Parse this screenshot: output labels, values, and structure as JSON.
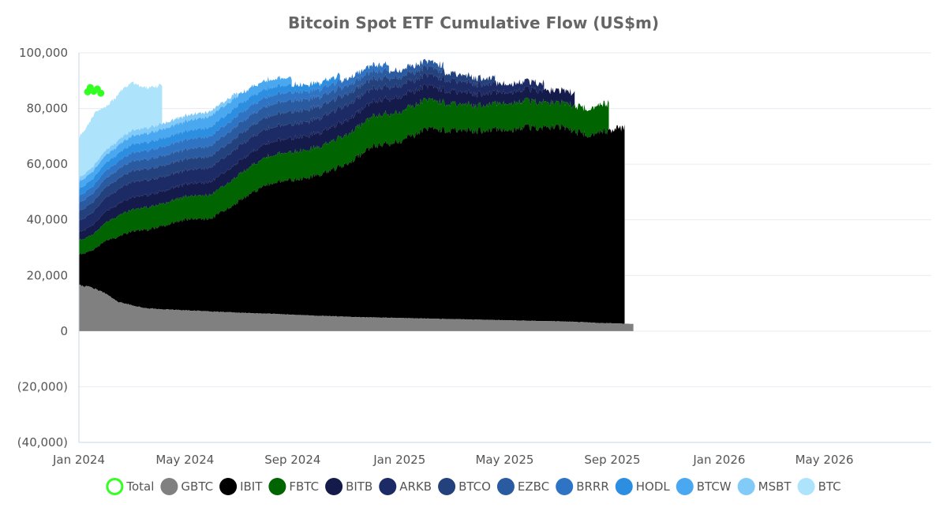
{
  "chart_data": {
    "type": "area",
    "title": "Bitcoin Spot ETF Cumulative Flow (US$m)",
    "subtitle": "",
    "xlabel": "",
    "ylabel": "",
    "stacked": true,
    "grid": true,
    "legend_position": "bottom",
    "xlim": [
      "2024-01-01",
      "2026-08-31"
    ],
    "ylim": [
      -40000,
      100000
    ],
    "y_ticks": [
      {
        "value": 100000,
        "label": "100,000"
      },
      {
        "value": 80000,
        "label": "80,000"
      },
      {
        "value": 60000,
        "label": "60,000"
      },
      {
        "value": 40000,
        "label": "40,000"
      },
      {
        "value": 20000,
        "label": "20,000"
      },
      {
        "value": 0,
        "label": "0"
      },
      {
        "value": -20000,
        "label": "(20,000)"
      },
      {
        "value": -40000,
        "label": "(40,000)"
      }
    ],
    "x_ticks": [
      {
        "value": "2024-01-01",
        "label": "Jan 2024"
      },
      {
        "value": "2024-05-01",
        "label": "May 2024"
      },
      {
        "value": "2024-09-01",
        "label": "Sep 2024"
      },
      {
        "value": "2025-01-01",
        "label": "Jan 2025"
      },
      {
        "value": "2025-05-01",
        "label": "May 2025"
      },
      {
        "value": "2025-09-01",
        "label": "Sep 2025"
      },
      {
        "value": "2026-01-01",
        "label": "Jan 2026"
      },
      {
        "value": "2026-05-01",
        "label": "May 2026"
      }
    ],
    "total": {
      "name": "Total",
      "color": "#33ff22",
      "points": [
        [
          "2024-01-11",
          86000
        ],
        [
          "2024-01-14",
          87500
        ],
        [
          "2024-01-18",
          86200
        ],
        [
          "2024-01-22",
          87000
        ],
        [
          "2024-01-26",
          85500
        ]
      ]
    },
    "series": [
      {
        "name": "GBTC",
        "color": "#808080",
        "end": "2025-09-25",
        "points": [
          [
            "2024-01-01",
            16500
          ],
          [
            "2024-01-15",
            15800
          ],
          [
            "2024-02-01",
            13500
          ],
          [
            "2024-02-15",
            10500
          ],
          [
            "2024-03-01",
            9300
          ],
          [
            "2024-03-15",
            8300
          ],
          [
            "2024-04-01",
            7900
          ],
          [
            "2024-05-01",
            7500
          ],
          [
            "2024-06-01",
            7000
          ],
          [
            "2024-07-01",
            6600
          ],
          [
            "2024-08-01",
            6300
          ],
          [
            "2024-09-01",
            5900
          ],
          [
            "2024-10-01",
            5500
          ],
          [
            "2024-11-01",
            5200
          ],
          [
            "2024-12-01",
            4900
          ],
          [
            "2025-01-01",
            4700
          ],
          [
            "2025-02-01",
            4500
          ],
          [
            "2025-03-01",
            4300
          ],
          [
            "2025-04-01",
            4100
          ],
          [
            "2025-05-01",
            3900
          ],
          [
            "2025-06-01",
            3700
          ],
          [
            "2025-07-01",
            3500
          ],
          [
            "2025-08-01",
            3200
          ],
          [
            "2025-08-15",
            2900
          ],
          [
            "2025-09-01",
            2800
          ],
          [
            "2025-09-25",
            2600
          ]
        ]
      },
      {
        "name": "IBIT",
        "color": "#000000",
        "end": "2025-09-15",
        "points": [
          [
            "2024-01-01",
            11000
          ],
          [
            "2024-01-15",
            13000
          ],
          [
            "2024-02-01",
            19000
          ],
          [
            "2024-02-15",
            23500
          ],
          [
            "2024-03-01",
            26500
          ],
          [
            "2024-03-15",
            28000
          ],
          [
            "2024-04-01",
            29500
          ],
          [
            "2024-05-01",
            32500
          ],
          [
            "2024-06-01",
            33500
          ],
          [
            "2024-07-01",
            40000
          ],
          [
            "2024-08-01",
            46500
          ],
          [
            "2024-09-01",
            48500
          ],
          [
            "2024-10-01",
            50500
          ],
          [
            "2024-11-01",
            55000
          ],
          [
            "2024-12-01",
            61500
          ],
          [
            "2025-01-01",
            63500
          ],
          [
            "2025-02-01",
            68000
          ],
          [
            "2025-03-01",
            68000
          ],
          [
            "2025-04-01",
            68000
          ],
          [
            "2025-05-01",
            68500
          ],
          [
            "2025-06-01",
            69500
          ],
          [
            "2025-07-01",
            70000
          ],
          [
            "2025-08-01",
            67500
          ],
          [
            "2025-09-01",
            69500
          ],
          [
            "2025-09-15",
            70500
          ]
        ]
      },
      {
        "name": "FBTC",
        "color": "#006400",
        "end": "2025-08-28",
        "points": [
          [
            "2024-01-01",
            5000
          ],
          [
            "2024-01-15",
            5500
          ],
          [
            "2024-02-01",
            6500
          ],
          [
            "2024-02-15",
            7500
          ],
          [
            "2024-03-01",
            7700
          ],
          [
            "2024-03-15",
            7900
          ],
          [
            "2024-04-01",
            8000
          ],
          [
            "2024-05-01",
            8200
          ],
          [
            "2024-06-01",
            8500
          ],
          [
            "2024-07-01",
            9500
          ],
          [
            "2024-08-01",
            10000
          ],
          [
            "2024-09-01",
            10000
          ],
          [
            "2024-10-01",
            10000
          ],
          [
            "2024-11-01",
            10500
          ],
          [
            "2024-12-01",
            10800
          ],
          [
            "2025-01-01",
            10500
          ],
          [
            "2025-02-01",
            10500
          ],
          [
            "2025-03-01",
            9500
          ],
          [
            "2025-04-01",
            9000
          ],
          [
            "2025-05-01",
            9500
          ],
          [
            "2025-06-01",
            9500
          ],
          [
            "2025-07-01",
            8500
          ],
          [
            "2025-08-01",
            9500
          ],
          [
            "2025-08-28",
            10000
          ]
        ]
      },
      {
        "name": "BITB",
        "color": "#141a4a",
        "end": "2025-07-20",
        "points": [
          [
            "2024-01-01",
            3000
          ],
          [
            "2024-02-01",
            4000
          ],
          [
            "2024-03-01",
            4500
          ],
          [
            "2024-05-01",
            4500
          ],
          [
            "2024-07-01",
            4800
          ],
          [
            "2024-09-01",
            5000
          ],
          [
            "2024-11-01",
            5200
          ],
          [
            "2025-01-01",
            5500
          ],
          [
            "2025-03-01",
            4500
          ],
          [
            "2025-05-01",
            4000
          ],
          [
            "2025-07-01",
            4500
          ],
          [
            "2025-07-20",
            4500
          ]
        ]
      },
      {
        "name": "ARKB",
        "color": "#1c2a66",
        "end": "2025-06-15",
        "points": [
          [
            "2024-01-01",
            4000
          ],
          [
            "2024-02-01",
            5000
          ],
          [
            "2024-03-01",
            5500
          ],
          [
            "2024-05-01",
            5000
          ],
          [
            "2024-07-01",
            5500
          ],
          [
            "2024-09-01",
            5000
          ],
          [
            "2024-11-01",
            5500
          ],
          [
            "2025-01-01",
            4000
          ],
          [
            "2025-03-01",
            4000
          ],
          [
            "2025-05-01",
            3000
          ],
          [
            "2025-06-15",
            2500
          ]
        ]
      },
      {
        "name": "BTCO",
        "color": "#23417c",
        "end": "2025-04-20",
        "points": [
          [
            "2024-01-01",
            3500
          ],
          [
            "2024-03-01",
            4000
          ],
          [
            "2024-05-01",
            4000
          ],
          [
            "2024-07-01",
            4000
          ],
          [
            "2024-09-01",
            4500
          ],
          [
            "2024-11-01",
            4000
          ],
          [
            "2025-01-01",
            3000
          ],
          [
            "2025-03-01",
            2500
          ],
          [
            "2025-04-20",
            2000
          ]
        ]
      },
      {
        "name": "EZBC",
        "color": "#2a5aa0",
        "end": "2025-02-20",
        "points": [
          [
            "2024-01-01",
            3000
          ],
          [
            "2024-03-01",
            3500
          ],
          [
            "2024-05-01",
            3500
          ],
          [
            "2024-07-01",
            4000
          ],
          [
            "2024-09-01",
            4000
          ],
          [
            "2024-11-01",
            3000
          ],
          [
            "2025-01-01",
            2500
          ],
          [
            "2025-02-20",
            2000
          ]
        ]
      },
      {
        "name": "BRRR",
        "color": "#2f74c4",
        "end": "2024-12-20",
        "points": [
          [
            "2024-01-01",
            2500
          ],
          [
            "2024-03-01",
            3000
          ],
          [
            "2024-05-01",
            3500
          ],
          [
            "2024-07-01",
            3500
          ],
          [
            "2024-09-01",
            3000
          ],
          [
            "2024-11-01",
            2500
          ],
          [
            "2024-12-20",
            2000
          ]
        ]
      },
      {
        "name": "HODL",
        "color": "#2b8ee0",
        "end": "2024-10-25",
        "points": [
          [
            "2024-01-01",
            2500
          ],
          [
            "2024-03-01",
            3000
          ],
          [
            "2024-05-01",
            3000
          ],
          [
            "2024-07-01",
            3500
          ],
          [
            "2024-09-01",
            2500
          ],
          [
            "2024-10-25",
            2000
          ]
        ]
      },
      {
        "name": "BTCW",
        "color": "#4aa8f0",
        "end": "2024-08-31",
        "points": [
          [
            "2024-01-01",
            2500
          ],
          [
            "2024-03-01",
            3000
          ],
          [
            "2024-05-01",
            3500
          ],
          [
            "2024-06-01",
            4000
          ],
          [
            "2024-07-01",
            3500
          ],
          [
            "2024-08-31",
            2500
          ]
        ]
      },
      {
        "name": "MSBT",
        "color": "#82cbf8",
        "end": "2024-06-30",
        "points": [
          [
            "2024-01-01",
            1500
          ],
          [
            "2024-03-01",
            2000
          ],
          [
            "2024-05-01",
            2000
          ],
          [
            "2024-06-30",
            1500
          ]
        ]
      },
      {
        "name": "BTC",
        "color": "#ade3fb",
        "end": "2024-04-05",
        "points": [
          [
            "2024-01-01",
            14500
          ],
          [
            "2024-01-20",
            18500
          ],
          [
            "2024-02-01",
            15500
          ],
          [
            "2024-02-15",
            16500
          ],
          [
            "2024-03-01",
            17500
          ],
          [
            "2024-03-15",
            14500
          ],
          [
            "2024-04-05",
            14000
          ]
        ]
      }
    ]
  }
}
